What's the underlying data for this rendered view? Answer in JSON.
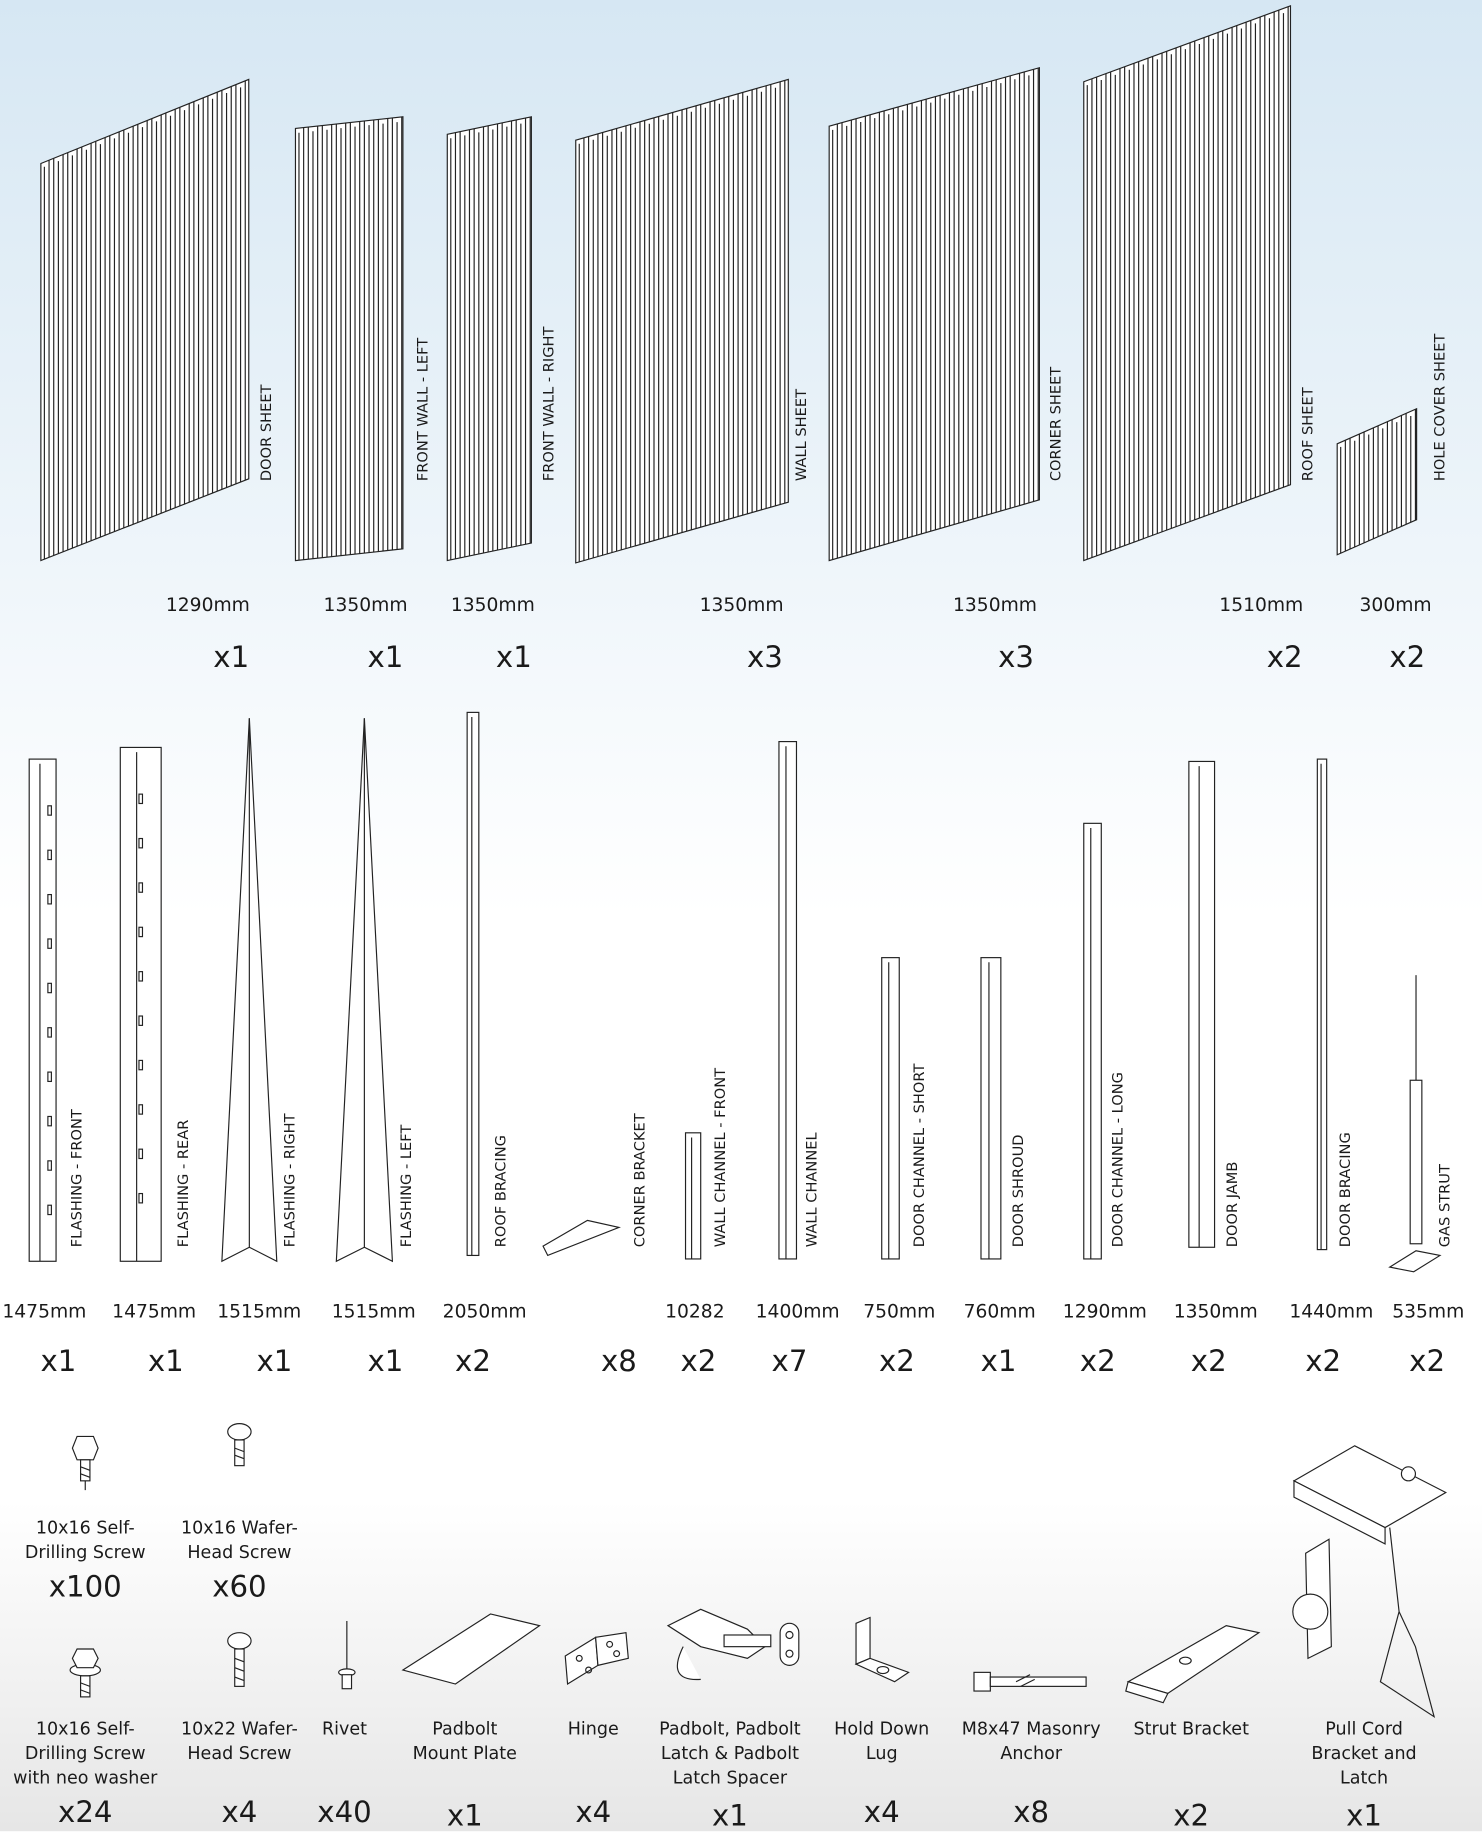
{
  "sheets": {
    "items": [
      {
        "label": "DOOR SHEET",
        "length": "1290mm",
        "qty": "x1"
      },
      {
        "label": "FRONT WALL - LEFT",
        "length": "1350mm",
        "qty": "x1"
      },
      {
        "label": "FRONT WALL - RIGHT",
        "length": "1350mm",
        "qty": "x1"
      },
      {
        "label": "WALL SHEET",
        "length": "1350mm",
        "qty": "x3"
      },
      {
        "label": "CORNER SHEET",
        "length": "1350mm",
        "qty": "x3"
      },
      {
        "label": "ROOF SHEET",
        "length": "1510mm",
        "qty": "x2"
      },
      {
        "label": "HOLE COVER SHEET",
        "length": "300mm",
        "qty": "x2"
      }
    ]
  },
  "channels": {
    "items": [
      {
        "label": "FLASHING - FRONT",
        "length": "1475mm",
        "qty": "x1"
      },
      {
        "label": "FLASHING - REAR",
        "length": "1475mm",
        "qty": "x1"
      },
      {
        "label": "FLASHING - RIGHT",
        "length": "1515mm",
        "qty": "x1"
      },
      {
        "label": "FLASHING - LEFT",
        "length": "1515mm",
        "qty": "x1"
      },
      {
        "label": "ROOF BRACING",
        "length": "2050mm",
        "qty": "x2"
      },
      {
        "label": "CORNER BRACKET",
        "qty": "x8"
      },
      {
        "label": "WALL CHANNEL - FRONT",
        "length": "10282",
        "qty": "x2"
      },
      {
        "label": "WALL CHANNEL",
        "length": "1400mm",
        "qty": "x7"
      },
      {
        "label": "DOOR CHANNEL - SHORT",
        "length": "750mm",
        "qty": "x2"
      },
      {
        "label": "DOOR SHROUD",
        "length": "760mm",
        "qty": "x1"
      },
      {
        "label": "DOOR CHANNEL - LONG",
        "length": "1290mm",
        "qty": "x2"
      },
      {
        "label": "DOOR JAMB",
        "length": "1350mm",
        "qty": "x2"
      },
      {
        "label": "DOOR BRACING",
        "length": "1440mm",
        "qty": "x2"
      },
      {
        "label": "GAS STRUT",
        "length": "535mm",
        "qty": "x2"
      }
    ]
  },
  "hardware": {
    "items": [
      {
        "label": "10x16 Self-Drilling Screw",
        "qty": "x100"
      },
      {
        "label": "10x16 Wafer-Head Screw",
        "qty": "x60"
      },
      {
        "label": "10x16 Self-Drilling Screw with neo washer",
        "qty": "x24"
      },
      {
        "label": "10x22 Wafer-Head Screw",
        "qty": "x4"
      },
      {
        "label": "Rivet",
        "qty": "x40"
      },
      {
        "label": "Padbolt Mount Plate",
        "qty": "x1"
      },
      {
        "label": "Hinge",
        "qty": "x4"
      },
      {
        "label": "Padbolt, Padbolt Latch & Padbolt Latch Spacer",
        "qty": "x1"
      },
      {
        "label": "Hold Down Lug",
        "qty": "x4"
      },
      {
        "label": "M8x47 Masonry Anchor",
        "qty": "x8"
      },
      {
        "label": "Strut Bracket",
        "qty": "x2"
      },
      {
        "label": "Pull Cord Bracket and Latch",
        "qty": "x1"
      }
    ]
  }
}
